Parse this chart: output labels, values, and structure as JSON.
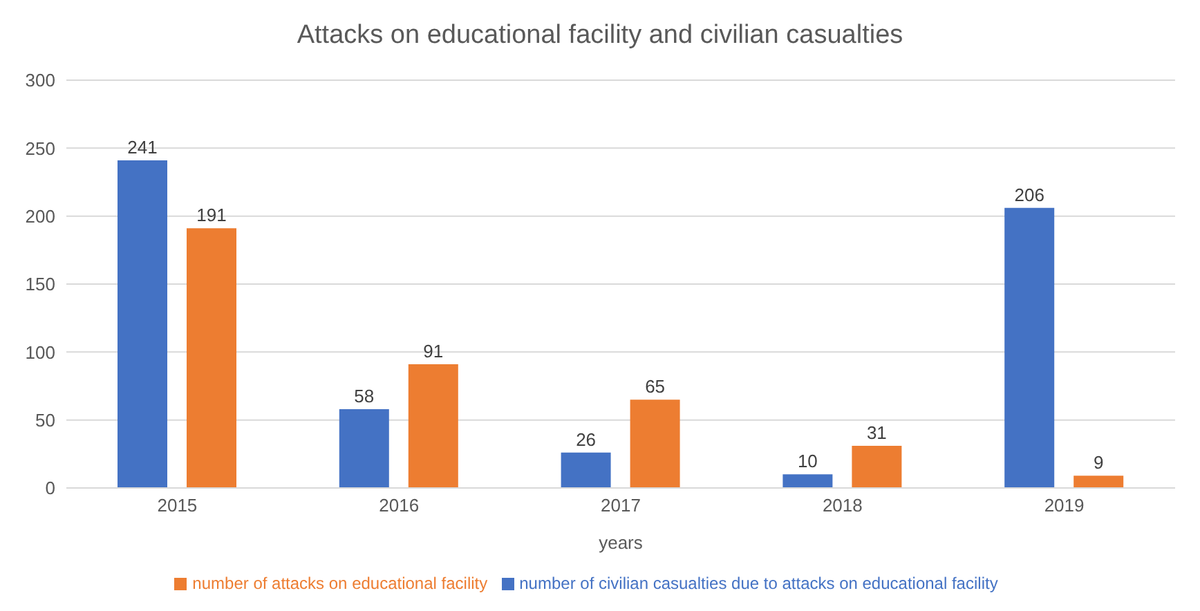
{
  "chart_data": {
    "type": "bar",
    "title": "Attacks on educational facility and civilian casualties",
    "xlabel": "years",
    "categories": [
      "2015",
      "2016",
      "2017",
      "2018",
      "2019"
    ],
    "series": [
      {
        "name": "number of civilian casualties due to attacks on educational facility",
        "color": "#4472c4",
        "values": [
          241,
          58,
          26,
          10,
          206
        ]
      },
      {
        "name": "number of attacks on educational facility",
        "color": "#ed7d31",
        "values": [
          191,
          91,
          65,
          31,
          9
        ]
      }
    ],
    "ylim": [
      0,
      300
    ],
    "yticks": [
      0,
      50,
      100,
      150,
      200,
      250,
      300
    ],
    "grid": "y",
    "legend": "bottom",
    "data_labels": true
  }
}
